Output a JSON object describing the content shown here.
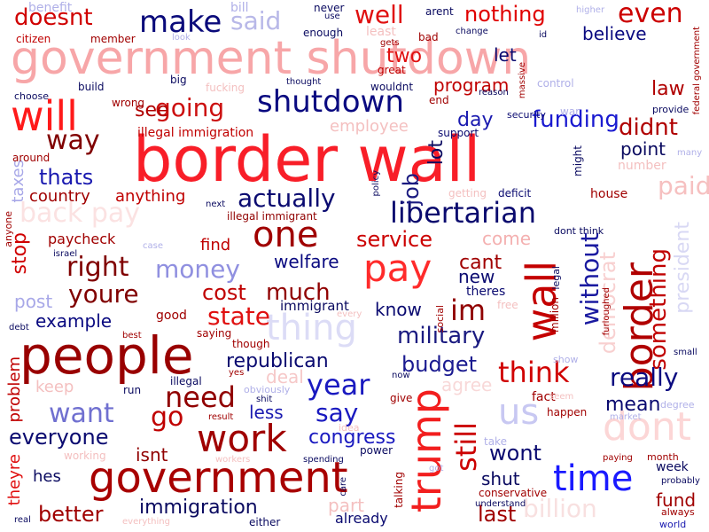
{
  "words": [
    {
      "id": "border-wall",
      "text": "border wall",
      "color": "#f81e28"
    },
    {
      "id": "government-shutdown",
      "text": "government shutdown",
      "color": "#f7a6a8"
    },
    {
      "id": "people",
      "text": "people",
      "color": "#990000"
    },
    {
      "id": "government",
      "text": "government",
      "color": "#a80000"
    },
    {
      "id": "will",
      "text": "will",
      "color": "#ff1a1a"
    },
    {
      "id": "trump",
      "text": "trump",
      "color": "#f21e1e"
    },
    {
      "id": "wall",
      "text": "wall",
      "color": "#c40000"
    },
    {
      "id": "border",
      "text": "border",
      "color": "#b00000"
    },
    {
      "id": "pay",
      "text": "pay",
      "color": "#ff2b2b"
    },
    {
      "id": "dont",
      "text": "dont",
      "color": "#fcd6d6"
    },
    {
      "id": "time",
      "text": "time",
      "color": "#1a1aff"
    },
    {
      "id": "us",
      "text": "us",
      "color": "#c8c8f2"
    },
    {
      "id": "work",
      "text": "work",
      "color": "#a00000"
    },
    {
      "id": "thing",
      "text": "thing",
      "color": "#dcdcf6"
    },
    {
      "id": "back-pay",
      "text": "back pay",
      "color": "#fbe2e2"
    },
    {
      "id": "one",
      "text": "one",
      "color": "#a00000"
    },
    {
      "id": "shutdown",
      "text": "shutdown",
      "color": "#0a0a80"
    },
    {
      "id": "well",
      "text": "well",
      "color": "#e01010"
    },
    {
      "id": "even",
      "text": "even",
      "color": "#cc0000"
    },
    {
      "id": "make",
      "text": "make",
      "color": "#0a0a7a"
    },
    {
      "id": "said",
      "text": "said",
      "color": "#b8b8e8"
    },
    {
      "id": "doesnt",
      "text": "doesnt",
      "color": "#d00000"
    },
    {
      "id": "nothing",
      "text": "nothing",
      "color": "#e00000"
    },
    {
      "id": "going",
      "text": "going",
      "color": "#cc1010"
    },
    {
      "id": "funding",
      "text": "funding",
      "color": "#1a1ad0"
    },
    {
      "id": "didnt",
      "text": "didnt",
      "color": "#b00000"
    },
    {
      "id": "way",
      "text": "way",
      "color": "#800000"
    },
    {
      "id": "thats",
      "text": "thats",
      "color": "#1a1ab0"
    },
    {
      "id": "libertarian",
      "text": "libertarian",
      "color": "#0a0a6e"
    },
    {
      "id": "actually",
      "text": "actually",
      "color": "#0a0a70"
    },
    {
      "id": "money",
      "text": "money",
      "color": "#9090e0"
    },
    {
      "id": "right",
      "text": "right",
      "color": "#800000"
    },
    {
      "id": "youre",
      "text": "youre",
      "color": "#800000"
    },
    {
      "id": "paid",
      "text": "paid",
      "color": "#f6c0c0"
    },
    {
      "id": "something",
      "text": "something",
      "color": "#c00000"
    },
    {
      "id": "president",
      "text": "president",
      "color": "#d8d8f4"
    },
    {
      "id": "think",
      "text": "think",
      "color": "#d00000"
    },
    {
      "id": "really",
      "text": "really",
      "color": "#0a0a80"
    },
    {
      "id": "year",
      "text": "year",
      "color": "#1a1ac0"
    },
    {
      "id": "need",
      "text": "need",
      "color": "#900000"
    },
    {
      "id": "want",
      "text": "want",
      "color": "#7070d0"
    },
    {
      "id": "go",
      "text": "go",
      "color": "#c00000"
    },
    {
      "id": "say",
      "text": "say",
      "color": "#1a1ac0"
    },
    {
      "id": "im",
      "text": "im",
      "color": "#900000"
    },
    {
      "id": "military",
      "text": "military",
      "color": "#1a1a80"
    },
    {
      "id": "state",
      "text": "state",
      "color": "#e01010"
    },
    {
      "id": "much",
      "text": "much",
      "color": "#900000"
    },
    {
      "id": "cost",
      "text": "cost",
      "color": "#c00000"
    },
    {
      "id": "republican",
      "text": "republican",
      "color": "#0a0a70"
    },
    {
      "id": "budget",
      "text": "budget",
      "color": "#1a1a90"
    },
    {
      "id": "still",
      "text": "still",
      "color": "#cc0000"
    },
    {
      "id": "without",
      "text": "without",
      "color": "#1a1aa0"
    },
    {
      "id": "democrat",
      "text": "democrat",
      "color": "#f8d0d0"
    },
    {
      "id": "mean",
      "text": "mean",
      "color": "#0a0a70"
    },
    {
      "id": "everyone",
      "text": "everyone",
      "color": "#0a0a70"
    },
    {
      "id": "congress",
      "text": "congress",
      "color": "#1a1ac0"
    },
    {
      "id": "wont",
      "text": "wont",
      "color": "#0a0a70"
    },
    {
      "id": "immigration",
      "text": "immigration",
      "color": "#0a0a60"
    },
    {
      "id": "better",
      "text": "better",
      "color": "#a00000"
    },
    {
      "id": "last",
      "text": "last",
      "color": "#a00000"
    },
    {
      "id": "billion",
      "text": "billion",
      "color": "#f8e0e0"
    },
    {
      "id": "fund",
      "text": "fund",
      "color": "#a00000"
    },
    {
      "id": "shut",
      "text": "shut",
      "color": "#0a0a60"
    },
    {
      "id": "service",
      "text": "service",
      "color": "#cc0000"
    },
    {
      "id": "welfare",
      "text": "welfare",
      "color": "#0a0a80"
    },
    {
      "id": "cant",
      "text": "cant",
      "color": "#a00000"
    },
    {
      "id": "new",
      "text": "new",
      "color": "#0a0a70"
    },
    {
      "id": "know",
      "text": "know",
      "color": "#0a0a70"
    },
    {
      "id": "example",
      "text": "example",
      "color": "#0a0a80"
    },
    {
      "id": "see",
      "text": "see",
      "color": "#b00000"
    },
    {
      "id": "two",
      "text": "two",
      "color": "#e01010"
    },
    {
      "id": "let",
      "text": "let",
      "color": "#0a0a70"
    },
    {
      "id": "believe",
      "text": "believe",
      "color": "#0a0a80"
    },
    {
      "id": "law",
      "text": "law",
      "color": "#b00000"
    },
    {
      "id": "day",
      "text": "day",
      "color": "#1a1ab0"
    },
    {
      "id": "point",
      "text": "point",
      "color": "#0a0a60"
    },
    {
      "id": "job",
      "text": "job",
      "color": "#1a1a80"
    },
    {
      "id": "lot",
      "text": "lot",
      "color": "#0a0a60"
    },
    {
      "id": "program",
      "text": "program",
      "color": "#c00000"
    },
    {
      "id": "come",
      "text": "come",
      "color": "#f4b0b0"
    },
    {
      "id": "find",
      "text": "find",
      "color": "#c00000"
    },
    {
      "id": "anything",
      "text": "anything",
      "color": "#c00000"
    },
    {
      "id": "country",
      "text": "country",
      "color": "#a00000"
    },
    {
      "id": "stop",
      "text": "stop",
      "color": "#d00000"
    },
    {
      "id": "post",
      "text": "post",
      "color": "#a8a8e8"
    },
    {
      "id": "paycheck",
      "text": "paycheck",
      "color": "#a00000"
    },
    {
      "id": "taxes",
      "text": "taxes",
      "color": "#a8a8e8"
    },
    {
      "id": "problem",
      "text": "problem",
      "color": "#c00000"
    },
    {
      "id": "less",
      "text": "less",
      "color": "#1a1ab0"
    },
    {
      "id": "isnt",
      "text": "isnt",
      "color": "#900000"
    },
    {
      "id": "hes",
      "text": "hes",
      "color": "#0a0a60"
    },
    {
      "id": "deal",
      "text": "deal",
      "color": "#f6c8c8"
    },
    {
      "id": "agree",
      "text": "agree",
      "color": "#f8d8d8"
    },
    {
      "id": "keep",
      "text": "keep",
      "color": "#f4c0c0"
    },
    {
      "id": "good",
      "text": "good",
      "color": "#a00000"
    },
    {
      "id": "immigrant",
      "text": "immigrant",
      "color": "#0a0a60"
    },
    {
      "id": "illegal-immigration",
      "text": "illegal immigration",
      "color": "#c00000"
    },
    {
      "id": "illegal-immigrant",
      "text": "illegal immigrant",
      "color": "#900000"
    },
    {
      "id": "illegal",
      "text": "illegal",
      "color": "#0a0a60"
    },
    {
      "id": "support",
      "text": "support",
      "color": "#0a0a70"
    },
    {
      "id": "security",
      "text": "security",
      "color": "#0a0a70"
    },
    {
      "id": "house",
      "text": "house",
      "color": "#a00000"
    },
    {
      "id": "deficit",
      "text": "deficit",
      "color": "#0a0a70"
    },
    {
      "id": "number",
      "text": "number",
      "color": "#f4c0c0"
    },
    {
      "id": "dont-think",
      "text": "dont think",
      "color": "#0a0a60"
    },
    {
      "id": "theres",
      "text": "theres",
      "color": "#0a0a70"
    },
    {
      "id": "fact",
      "text": "fact",
      "color": "#a00000"
    },
    {
      "id": "happen",
      "text": "happen",
      "color": "#a00000"
    },
    {
      "id": "week",
      "text": "week",
      "color": "#0a0a60"
    },
    {
      "id": "month",
      "text": "month",
      "color": "#a00000"
    },
    {
      "id": "probably",
      "text": "probably",
      "color": "#0a0a60"
    },
    {
      "id": "paying",
      "text": "paying",
      "color": "#a00000"
    },
    {
      "id": "degree",
      "text": "degree",
      "color": "#b0b0e8"
    },
    {
      "id": "always",
      "text": "always",
      "color": "#a00000"
    },
    {
      "id": "world",
      "text": "world",
      "color": "#1a1ab0"
    },
    {
      "id": "small",
      "text": "small",
      "color": "#0a0a60"
    },
    {
      "id": "run",
      "text": "run",
      "color": "#0a0a60"
    },
    {
      "id": "yes",
      "text": "yes",
      "color": "#a00000"
    },
    {
      "id": "obviously",
      "text": "obviously",
      "color": "#b0b0e8"
    },
    {
      "id": "shit",
      "text": "shit",
      "color": "#0a0a60"
    },
    {
      "id": "saying",
      "text": "saying",
      "color": "#a00000"
    },
    {
      "id": "though",
      "text": "though",
      "color": "#a00000"
    },
    {
      "id": "best",
      "text": "best",
      "color": "#a00000"
    },
    {
      "id": "every",
      "text": "every",
      "color": "#f4c0c0"
    },
    {
      "id": "free",
      "text": "free",
      "color": "#f4c0c0"
    },
    {
      "id": "social",
      "text": "social",
      "color": "#a00000"
    },
    {
      "id": "million",
      "text": "million",
      "color": "#a00000"
    },
    {
      "id": "legal",
      "text": "legal",
      "color": "#0a0a60"
    },
    {
      "id": "furloughed",
      "text": "furloughed",
      "color": "#a00000"
    },
    {
      "id": "take",
      "text": "take",
      "color": "#b0b0e8"
    },
    {
      "id": "understand",
      "text": "understand",
      "color": "#0a0a60"
    },
    {
      "id": "conservative",
      "text": "conservative",
      "color": "#a00000"
    },
    {
      "id": "talking",
      "text": "talking",
      "color": "#a00000"
    },
    {
      "id": "got",
      "text": "got",
      "color": "#b0b0e8"
    },
    {
      "id": "care",
      "text": "care",
      "color": "#0a0a60"
    },
    {
      "id": "spending",
      "text": "spending",
      "color": "#0a0a60"
    },
    {
      "id": "power",
      "text": "power",
      "color": "#0a0a60"
    },
    {
      "id": "workers",
      "text": "workers",
      "color": "#f4c0c0"
    },
    {
      "id": "either",
      "text": "either",
      "color": "#0a0a60"
    },
    {
      "id": "working",
      "text": "working",
      "color": "#f4c0c0"
    },
    {
      "id": "everything",
      "text": "everything",
      "color": "#f4c0c0"
    },
    {
      "id": "real",
      "text": "real",
      "color": "#0a0a60"
    },
    {
      "id": "theyre",
      "text": "theyre",
      "color": "#e01010"
    },
    {
      "id": "result",
      "text": "result",
      "color": "#a00000"
    },
    {
      "id": "market",
      "text": "market",
      "color": "#b0b0e8"
    },
    {
      "id": "give",
      "text": "give",
      "color": "#a00000"
    },
    {
      "id": "now",
      "text": "now",
      "color": "#0a0a60"
    },
    {
      "id": "part",
      "text": "part",
      "color": "#f4c0c0"
    },
    {
      "id": "already",
      "text": "already",
      "color": "#0a0a70"
    },
    {
      "id": "benefit",
      "text": "benefit",
      "color": "#b0b0e8"
    },
    {
      "id": "citizen",
      "text": "citizen",
      "color": "#c00000"
    },
    {
      "id": "member",
      "text": "member",
      "color": "#a00000"
    },
    {
      "id": "bill",
      "text": "bill",
      "color": "#b0b0e8"
    },
    {
      "id": "never",
      "text": "never",
      "color": "#0a0a60"
    },
    {
      "id": "use",
      "text": "use",
      "color": "#0a0a60"
    },
    {
      "id": "enough",
      "text": "enough",
      "color": "#0a0a60"
    },
    {
      "id": "least",
      "text": "least",
      "color": "#f4c0c0"
    },
    {
      "id": "gets",
      "text": "gets",
      "color": "#a00000"
    },
    {
      "id": "arent",
      "text": "arent",
      "color": "#0a0a60"
    },
    {
      "id": "bad",
      "text": "bad",
      "color": "#a00000"
    },
    {
      "id": "change",
      "text": "change",
      "color": "#0a0a60"
    },
    {
      "id": "higher",
      "text": "higher",
      "color": "#b0b0e8"
    },
    {
      "id": "id",
      "text": "id",
      "color": "#0a0a60"
    },
    {
      "id": "great",
      "text": "great",
      "color": "#c00000"
    },
    {
      "id": "massive",
      "text": "massive",
      "color": "#a00000"
    },
    {
      "id": "control",
      "text": "control",
      "color": "#b0b0e8"
    },
    {
      "id": "federal-government",
      "text": "federal government",
      "color": "#a00000"
    },
    {
      "id": "big",
      "text": "big",
      "color": "#0a0a60"
    },
    {
      "id": "build",
      "text": "build",
      "color": "#0a0a60"
    },
    {
      "id": "fucking",
      "text": "fucking",
      "color": "#f4c0c0"
    },
    {
      "id": "thought",
      "text": "thought",
      "color": "#0a0a60"
    },
    {
      "id": "wouldnt",
      "text": "wouldnt",
      "color": "#0a0a60"
    },
    {
      "id": "end",
      "text": "end",
      "color": "#a00000"
    },
    {
      "id": "reason",
      "text": "reason",
      "color": "#0a0a60"
    },
    {
      "id": "provide",
      "text": "provide",
      "color": "#0a0a60"
    },
    {
      "id": "choose",
      "text": "choose",
      "color": "#0a0a60"
    },
    {
      "id": "wrong",
      "text": "wrong",
      "color": "#a00000"
    },
    {
      "id": "around",
      "text": "around",
      "color": "#a00000"
    },
    {
      "id": "employee",
      "text": "employee",
      "color": "#f4c0c0"
    },
    {
      "id": "policy",
      "text": "policy",
      "color": "#0a0a60"
    },
    {
      "id": "might",
      "text": "might",
      "color": "#0a0a60"
    },
    {
      "id": "many",
      "text": "many",
      "color": "#b0b0e8"
    },
    {
      "id": "next",
      "text": "next",
      "color": "#0a0a60"
    },
    {
      "id": "getting",
      "text": "getting",
      "color": "#f4c0c0"
    },
    {
      "id": "anyone",
      "text": "anyone",
      "color": "#a00000"
    },
    {
      "id": "israel",
      "text": "israel",
      "color": "#0a0a60"
    },
    {
      "id": "case",
      "text": "case",
      "color": "#b0b0e8"
    },
    {
      "id": "debt",
      "text": "debt",
      "color": "#0a0a60"
    },
    {
      "id": "idea",
      "text": "idea",
      "color": "#f4c0c0"
    },
    {
      "id": "seem",
      "text": "seem",
      "color": "#f4c0c0"
    },
    {
      "id": "show",
      "text": "show",
      "color": "#b0b0e8"
    },
    {
      "id": "war",
      "text": "war",
      "color": "#b0b0e8"
    },
    {
      "id": "look",
      "text": "look",
      "color": "#b0b0e8"
    }
  ]
}
